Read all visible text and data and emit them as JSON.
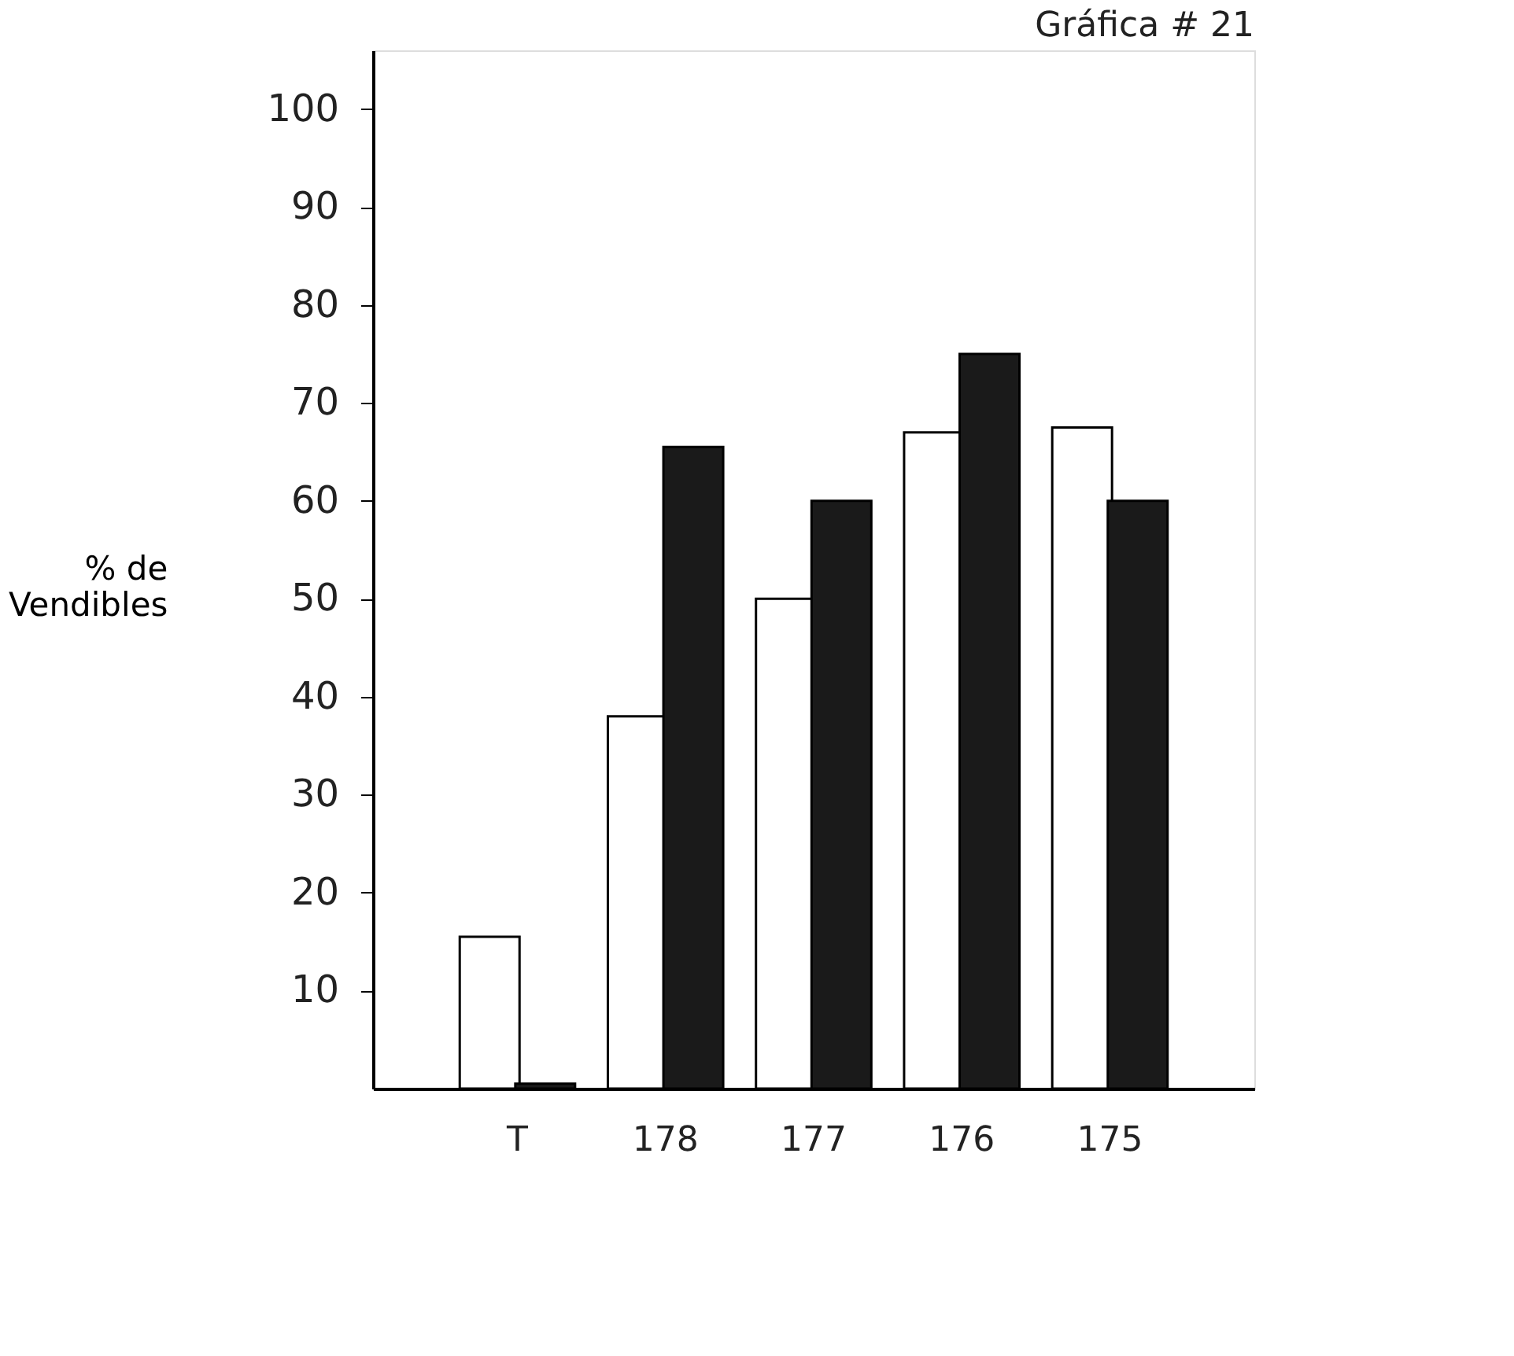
{
  "chart_data": {
    "type": "bar",
    "title": "Gráfica # 21",
    "ylabel": "% de Vendibles",
    "categories": [
      "T",
      "178",
      "177",
      "176",
      "175"
    ],
    "series": [
      {
        "color": "#ffffff",
        "values": [
          15.5,
          38,
          50,
          67,
          67.5
        ]
      },
      {
        "color": "#1a1a1a",
        "values": [
          0.5,
          65.5,
          60,
          75,
          60
        ]
      }
    ],
    "ylim": [
      0,
      106
    ],
    "yticks": [
      10,
      20,
      30,
      40,
      50,
      60,
      70,
      80,
      90,
      100
    ],
    "grid": false
  }
}
